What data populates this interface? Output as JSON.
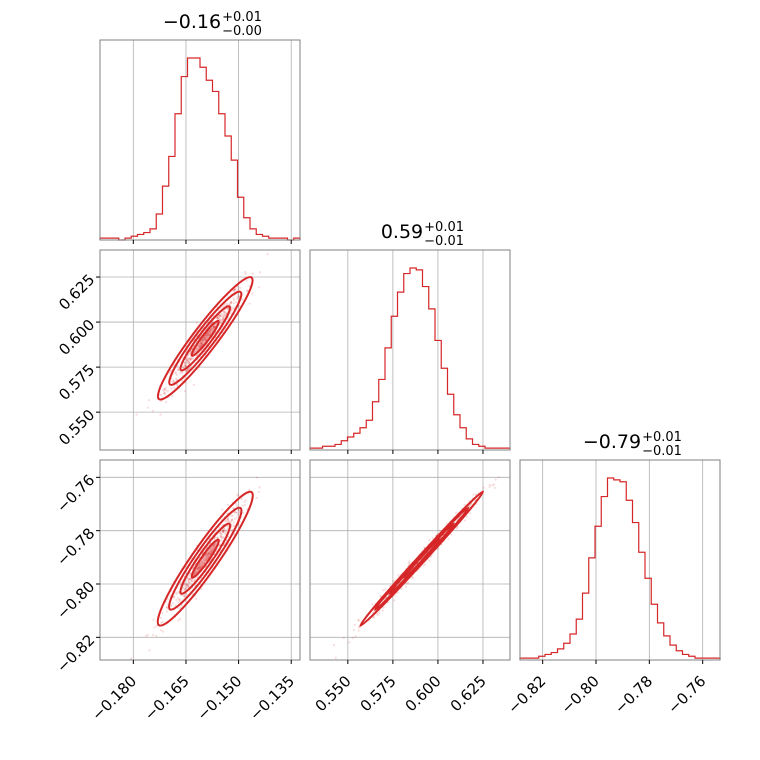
{
  "chart_data": {
    "type": "corner",
    "colors": {
      "series": "#d62728",
      "grid": "#b0b0b0",
      "frame": "#808080"
    },
    "grid": true,
    "titles": [
      {
        "value": "−0.16",
        "plus": "+0.01",
        "minus": "−0.00"
      },
      {
        "value": "0.59",
        "plus": "+0.01",
        "minus": "−0.01"
      },
      {
        "value": "−0.79",
        "plus": "+0.01",
        "minus": "−0.01"
      }
    ],
    "axes": [
      {
        "range": [
          -0.1895,
          -0.1325
        ],
        "ticks": [
          -0.18,
          -0.165,
          -0.15,
          -0.135
        ],
        "tick_labels": [
          "−0.180",
          "−0.165",
          "−0.150",
          "−0.135"
        ]
      },
      {
        "range": [
          0.529,
          0.64
        ],
        "ticks": [
          0.55,
          0.575,
          0.6,
          0.625
        ],
        "tick_labels": [
          "0.550",
          "0.575",
          "0.600",
          "0.625"
        ]
      },
      {
        "range": [
          -0.8285,
          -0.7535
        ],
        "ticks": [
          -0.82,
          -0.8,
          -0.78,
          -0.76
        ],
        "tick_labels": [
          "−0.82",
          "−0.80",
          "−0.78",
          "−0.76"
        ]
      }
    ],
    "histograms": [
      [
        1,
        1,
        1,
        0,
        1,
        2,
        3,
        4,
        6,
        14,
        29,
        45,
        68,
        88,
        98,
        98,
        93,
        86,
        80,
        68,
        56,
        43,
        23,
        12,
        6,
        3,
        2,
        1,
        1,
        1,
        0,
        1
      ],
      [
        1,
        1,
        2,
        2,
        3,
        5,
        7,
        9,
        12,
        16,
        26,
        38,
        55,
        72,
        85,
        95,
        98,
        97,
        88,
        76,
        59,
        44,
        30,
        19,
        12,
        6,
        3,
        2,
        1,
        1,
        1,
        1
      ],
      [
        1,
        1,
        1,
        2,
        3,
        4,
        6,
        9,
        14,
        22,
        36,
        55,
        72,
        88,
        98,
        97,
        96,
        86,
        74,
        58,
        44,
        30,
        20,
        13,
        8,
        5,
        3,
        2,
        1,
        1,
        1,
        1
      ]
    ],
    "correlations": {
      "x0_x1": 0.95,
      "x0_x2": 0.95,
      "x1_x2": 0.99
    }
  }
}
